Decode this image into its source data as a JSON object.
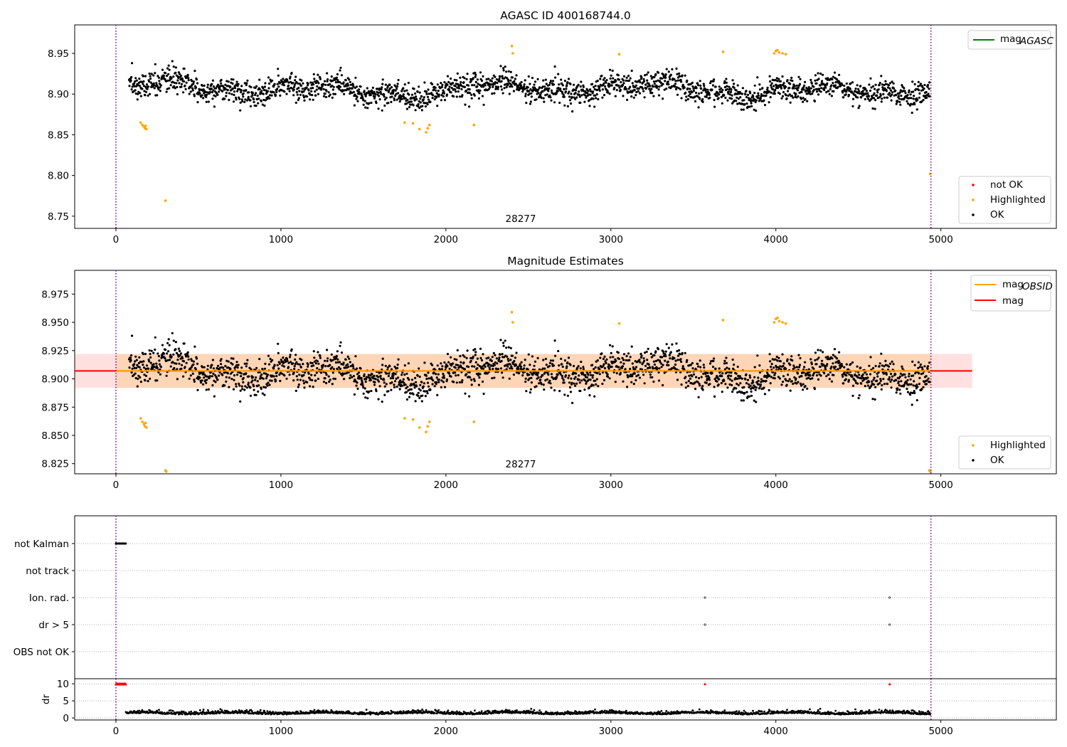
{
  "chart_data": [
    {
      "type": "scatter",
      "title": "AGASC ID 400168744.0",
      "xlim": [
        -250,
        5700
      ],
      "ylim": [
        8.735,
        8.985
      ],
      "x_ticks": [
        0,
        1000,
        2000,
        3000,
        4000,
        5000
      ],
      "y_ticks": [
        8.75,
        8.8,
        8.85,
        8.9,
        8.95
      ],
      "y_tick_labels": [
        "8.75",
        "8.80",
        "8.85",
        "8.90",
        "8.95"
      ],
      "obsid_boundaries": [
        0,
        4940
      ],
      "obsid_annotation": {
        "text": "28277",
        "x": 2470,
        "y": 8.74
      },
      "legend_upper": [
        {
          "label": "mag",
          "sub": "AGASC",
          "color": "#008000",
          "kind": "line"
        }
      ],
      "legend_lower": [
        {
          "label": "not OK",
          "color": "#ff0000",
          "kind": "marker"
        },
        {
          "label": "Highlighted",
          "color": "#ffa500",
          "kind": "marker"
        },
        {
          "label": "OK",
          "color": "#000000",
          "kind": "marker"
        }
      ],
      "series": [
        {
          "name": "OK",
          "color": "#000000",
          "x_range": [
            80,
            4935
          ],
          "mean": 8.906,
          "spread": 0.015
        },
        {
          "name": "Highlighted",
          "color": "#ffa500",
          "x": [
            150,
            160,
            170,
            175,
            180,
            185,
            300,
            1750,
            1800,
            1840,
            1880,
            1890,
            1900,
            2170,
            2400,
            2405,
            3050,
            3680,
            3990,
            4000,
            4010,
            4020,
            4040,
            4060,
            4935
          ],
          "y": [
            8.865,
            8.862,
            8.86,
            8.858,
            8.861,
            8.857,
            8.769,
            8.865,
            8.864,
            8.857,
            8.853,
            8.858,
            8.862,
            8.862,
            8.959,
            8.95,
            8.949,
            8.952,
            8.95,
            8.953,
            8.954,
            8.951,
            8.95,
            8.949,
            8.802
          ]
        }
      ]
    },
    {
      "type": "scatter",
      "title": "Magnitude Estimates",
      "xlim": [
        -250,
        5700
      ],
      "ylim": [
        8.816,
        8.996
      ],
      "x_ticks": [
        0,
        1000,
        2000,
        3000,
        4000,
        5000
      ],
      "y_ticks": [
        8.825,
        8.85,
        8.875,
        8.9,
        8.925,
        8.95,
        8.975
      ],
      "y_tick_labels": [
        "8.825",
        "8.850",
        "8.875",
        "8.900",
        "8.925",
        "8.950",
        "8.975"
      ],
      "obsid_boundaries": [
        0,
        4940
      ],
      "obsid_annotation": {
        "text": "28277",
        "x": 2470,
        "y": 8.82
      },
      "mag_line": 8.907,
      "band": [
        8.892,
        8.922
      ],
      "band_x": [
        -250,
        5190
      ],
      "obsid_mag_line": 8.907,
      "obsid_band_x": [
        0,
        4940
      ],
      "legend_upper": [
        {
          "label": "mag",
          "sub": "OBSID",
          "color": "#ffa500",
          "kind": "line"
        },
        {
          "label": "mag",
          "sub": "",
          "color": "#ff0000",
          "kind": "line"
        }
      ],
      "legend_lower": [
        {
          "label": "Highlighted",
          "color": "#ffa500",
          "kind": "marker"
        },
        {
          "label": "OK",
          "color": "#000000",
          "kind": "marker"
        }
      ],
      "series": [
        {
          "name": "OK",
          "color": "#000000",
          "x_range": [
            80,
            4935
          ],
          "mean": 8.906,
          "spread": 0.015
        },
        {
          "name": "Highlighted",
          "color": "#ffa500",
          "x": [
            150,
            160,
            170,
            175,
            180,
            185,
            300,
            305,
            1750,
            1800,
            1840,
            1880,
            1890,
            1900,
            2170,
            2400,
            2405,
            3050,
            3680,
            3990,
            4000,
            4010,
            4020,
            4040,
            4060,
            4930,
            4935
          ],
          "y": [
            8.865,
            8.862,
            8.86,
            8.858,
            8.861,
            8.857,
            8.819,
            8.818,
            8.865,
            8.864,
            8.857,
            8.853,
            8.858,
            8.862,
            8.862,
            8.959,
            8.95,
            8.949,
            8.952,
            8.95,
            8.953,
            8.954,
            8.951,
            8.95,
            8.949,
            8.819,
            8.818
          ]
        }
      ]
    },
    {
      "type": "scatter",
      "xlim": [
        -250,
        5700
      ],
      "categories": [
        "not Kalman",
        "not track",
        "Ion. rad.",
        "dr > 5",
        "OBS not OK"
      ],
      "flag_points": [
        {
          "category": "not Kalman",
          "x_range": [
            0,
            60
          ]
        },
        {
          "category": "Ion. rad.",
          "x": [
            3570,
            4690
          ]
        },
        {
          "category": "dr > 5",
          "x": [
            3570,
            4690
          ]
        }
      ],
      "obsid_boundaries": [
        0,
        4940
      ]
    },
    {
      "type": "scatter",
      "xlim": [
        -250,
        5700
      ],
      "ylim": [
        -0.6,
        11.5
      ],
      "ylabel": "dr",
      "y_ticks": [
        0,
        5,
        10
      ],
      "y_tick_labels": [
        "0",
        "5",
        "10"
      ],
      "x_ticks": [
        0,
        1000,
        2000,
        3000,
        4000,
        5000
      ],
      "x_tick_labels": [
        "0",
        "1000",
        "2000",
        "3000",
        "4000",
        "5000"
      ],
      "obsid_boundaries": [
        0,
        4940
      ],
      "clipped_points": {
        "color": "#ff0000",
        "x_range": [
          0,
          60
        ],
        "extra_x": [
          3570,
          4690
        ],
        "y": 10
      },
      "series": [
        {
          "name": "dr",
          "color": "#000000",
          "x_range": [
            60,
            4935
          ],
          "mean": 1.2,
          "spread": 0.6
        }
      ]
    }
  ]
}
